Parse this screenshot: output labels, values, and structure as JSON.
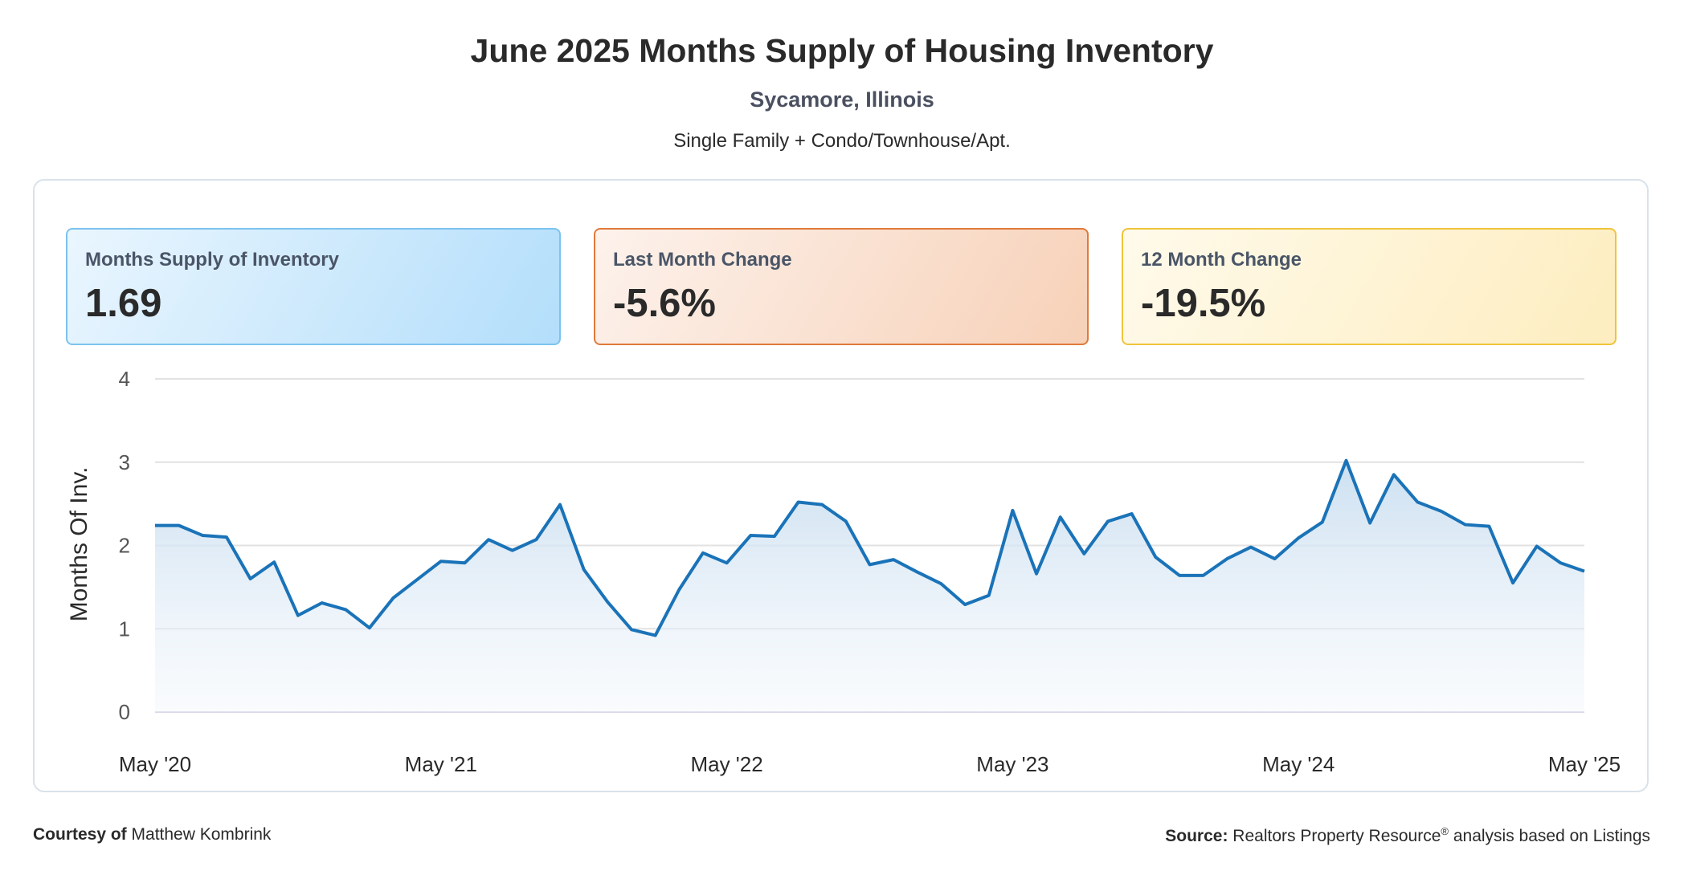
{
  "header": {
    "title": "June 2025 Months Supply of Housing Inventory",
    "location": "Sycamore, Illinois",
    "property_types": "Single Family + Condo/Townhouse/Apt."
  },
  "kpis": {
    "months_supply": {
      "label": "Months Supply of Inventory",
      "value": "1.69"
    },
    "last_month_change": {
      "label": "Last Month Change",
      "value": "-5.6%"
    },
    "twelve_month_change": {
      "label": "12 Month Change",
      "value": "-19.5%"
    }
  },
  "colors": {
    "line": "#1a73b8",
    "area_top": "#c9def0",
    "grid": "#e2e2e2",
    "baseline": "#d8d8e8"
  },
  "chart_data": {
    "type": "area",
    "title": "June 2025 Months Supply of Housing Inventory",
    "ylabel": "Months Of Inv.",
    "xlabel": "",
    "ylim": [
      0,
      4
    ],
    "yticks": [
      0,
      1,
      2,
      3,
      4
    ],
    "x_tick_labels": [
      "May '20",
      "May '21",
      "May '22",
      "May '23",
      "May '24",
      "May '25"
    ],
    "x_tick_indices": [
      0,
      12,
      24,
      36,
      48,
      60
    ],
    "grid": true,
    "series": [
      {
        "name": "Months Supply of Inventory",
        "values": [
          2.24,
          2.24,
          2.12,
          2.1,
          1.6,
          1.8,
          1.16,
          1.31,
          1.23,
          1.01,
          1.37,
          1.59,
          1.81,
          1.79,
          2.07,
          1.94,
          2.07,
          2.49,
          1.71,
          1.32,
          0.99,
          0.92,
          1.47,
          1.91,
          1.79,
          2.12,
          2.11,
          2.52,
          2.49,
          2.29,
          1.77,
          1.83,
          1.68,
          1.54,
          1.29,
          1.4,
          2.42,
          1.66,
          2.34,
          1.9,
          2.29,
          2.38,
          1.86,
          1.64,
          1.64,
          1.84,
          1.98,
          1.84,
          2.09,
          2.28,
          3.02,
          2.27,
          2.85,
          2.52,
          2.41,
          2.25,
          2.23,
          1.55,
          1.99,
          1.79,
          1.69
        ]
      }
    ]
  },
  "footer": {
    "courtesy_label": "Courtesy of",
    "courtesy_name": "Matthew Kombrink",
    "source_label": "Source:",
    "source_text_1": "Realtors Property Resource",
    "source_reg": "®",
    "source_text_2": "analysis based on Listings"
  }
}
